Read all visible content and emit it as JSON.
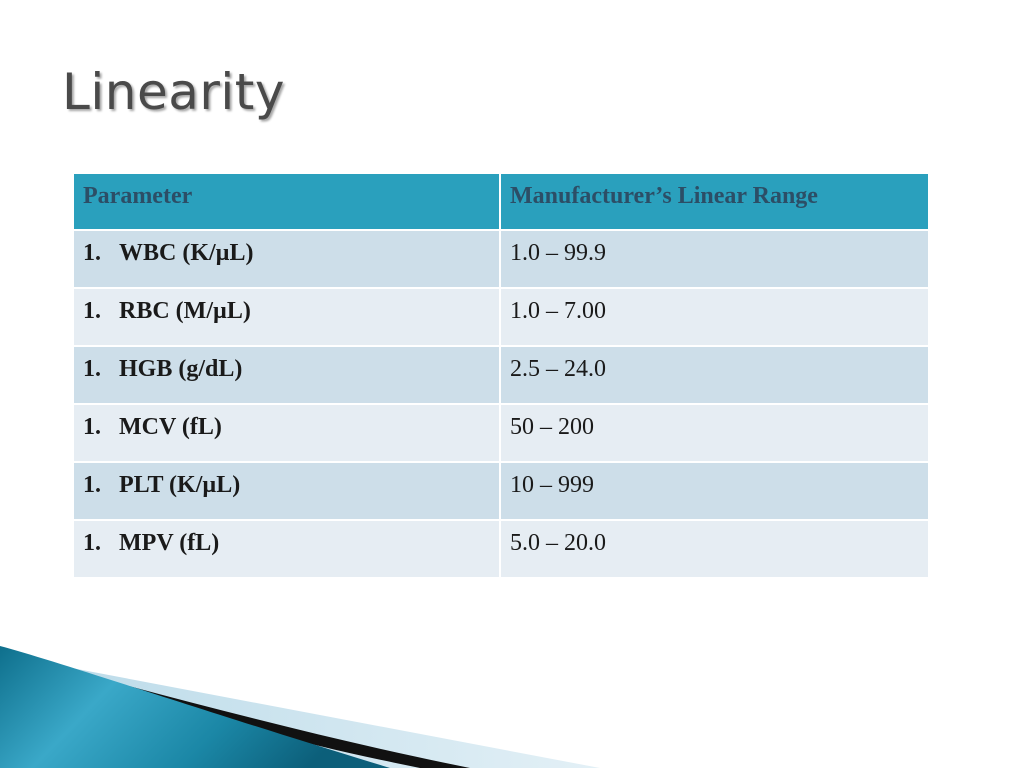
{
  "slide": {
    "title": "Linearity"
  },
  "table": {
    "headers": [
      "Parameter",
      "Manufacturer’s Linear Range"
    ],
    "rows": [
      {
        "num": "1.",
        "param": "WBC (K/µL)",
        "range": "1.0 – 99.9"
      },
      {
        "num": "1.",
        "param": "RBC (M/µL)",
        "range": "1.0 – 7.00"
      },
      {
        "num": "1.",
        "param": "HGB (g/dL)",
        "range": "2.5 – 24.0"
      },
      {
        "num": "1.",
        "param": "MCV (fL)",
        "range": "50 – 200"
      },
      {
        "num": "1.",
        "param": "PLT (K/µL)",
        "range": "10 – 999"
      },
      {
        "num": "1.",
        "param": "MPV (fL)",
        "range": "5.0 – 20.0"
      }
    ]
  },
  "colors": {
    "header_bg": "#2aa0bd",
    "header_text": "#2c4e66",
    "row_odd": "#cddee9",
    "row_even": "#e6edf3",
    "title_text": "#4a4a4a"
  }
}
